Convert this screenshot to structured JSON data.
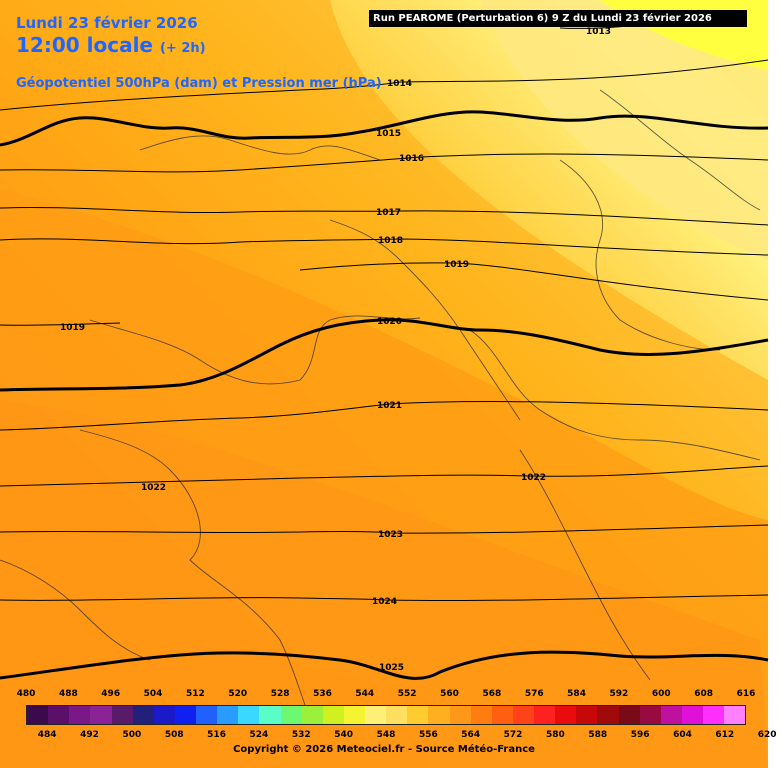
{
  "header": {
    "date": "Lundi 23 février 2026",
    "time": "12:00 locale",
    "utc_offset": "(+ 2h)",
    "field": "Géopotentiel 500hPa (dam) et Pression mer (hPa)",
    "run_info": "Run PEAROME (Perturbation 6) 9 Z du Lundi 23 février 2026"
  },
  "isobars": [
    {
      "value": "1013"
    },
    {
      "value": "1014"
    },
    {
      "value": "1015"
    },
    {
      "value": "1016"
    },
    {
      "value": "1017"
    },
    {
      "value": "1018"
    },
    {
      "value": "1019"
    },
    {
      "value": "1019"
    },
    {
      "value": "1020"
    },
    {
      "value": "1021"
    },
    {
      "value": "1022"
    },
    {
      "value": "1022"
    },
    {
      "value": "1023"
    },
    {
      "value": "1024"
    },
    {
      "value": "1025"
    }
  ],
  "legend": {
    "top_labels": [
      "480",
      "488",
      "496",
      "504",
      "512",
      "520",
      "528",
      "536",
      "544",
      "552",
      "560",
      "568",
      "576",
      "584",
      "592",
      "600",
      "608",
      "616"
    ],
    "bottom_labels": [
      "484",
      "492",
      "500",
      "508",
      "516",
      "524",
      "532",
      "540",
      "548",
      "556",
      "564",
      "572",
      "580",
      "588",
      "596",
      "604",
      "612",
      "620"
    ],
    "colors": [
      "#3a0a4a",
      "#5a1068",
      "#7a1888",
      "#8a2496",
      "#5a1a6a",
      "#22207a",
      "#1a1ac8",
      "#1020f0",
      "#2060ff",
      "#2a9cff",
      "#38d8ff",
      "#5afcc8",
      "#6cf870",
      "#9af03a",
      "#d0f020",
      "#f4f430",
      "#fff078",
      "#ffe060",
      "#ffcc30",
      "#ffb020",
      "#ff9818",
      "#ff7c10",
      "#ff6010",
      "#ff4218",
      "#ff2020",
      "#e80c0c",
      "#c80808",
      "#a00a0a",
      "#7a0a18",
      "#980a40",
      "#c010a0",
      "#e010d8",
      "#ff30ff",
      "#ff80ff"
    ]
  },
  "copyright": "Copyright © 2026 Meteociel.fr - Source Météo-France"
}
